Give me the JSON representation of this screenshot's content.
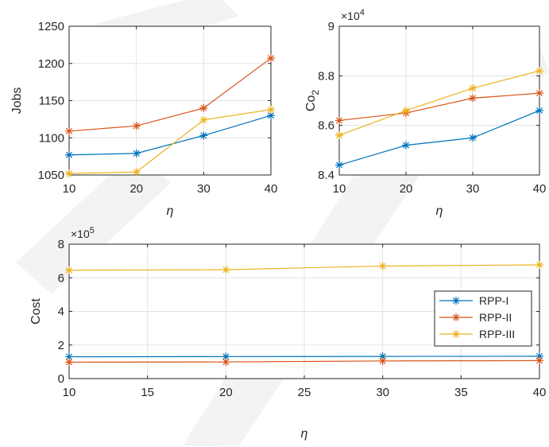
{
  "colors": {
    "RPP-I": "#0072BD",
    "RPP-II": "#D95319",
    "RPP-III": "#EDB120"
  },
  "chart_data": [
    {
      "id": "jobs",
      "type": "line",
      "marker": "asterisk",
      "xlabel": "η",
      "ylabel": "Jobs",
      "multiplier": "",
      "x": [
        10,
        20,
        30,
        40
      ],
      "xlim": [
        10,
        40
      ],
      "xticks": [
        "10",
        "20",
        "30",
        "40"
      ],
      "ylim": [
        1050,
        1250
      ],
      "yticks": [
        "1050",
        "1100",
        "1150",
        "1200",
        "1250"
      ],
      "grid": true,
      "series": [
        {
          "name": "RPP-I",
          "values": [
            1077,
            1079,
            1103,
            1130
          ]
        },
        {
          "name": "RPP-II",
          "values": [
            1109,
            1116,
            1140,
            1207
          ]
        },
        {
          "name": "RPP-III",
          "values": [
            1052,
            1054,
            1124,
            1138
          ]
        }
      ]
    },
    {
      "id": "co2",
      "type": "line",
      "marker": "asterisk",
      "xlabel": "η",
      "ylabel": "Co",
      "ylabel_sub": "2",
      "multiplier": "×10",
      "multiplier_exp": "4",
      "x": [
        10,
        20,
        30,
        40
      ],
      "xlim": [
        10,
        40
      ],
      "xticks": [
        "10",
        "20",
        "30",
        "40"
      ],
      "ylim": [
        8.4,
        9
      ],
      "yticks": [
        "8.4",
        "8.6",
        "8.8",
        "9"
      ],
      "grid": true,
      "series": [
        {
          "name": "RPP-I",
          "values": [
            8.44,
            8.52,
            8.55,
            8.66
          ]
        },
        {
          "name": "RPP-II",
          "values": [
            8.62,
            8.65,
            8.71,
            8.73
          ]
        },
        {
          "name": "RPP-III",
          "values": [
            8.56,
            8.66,
            8.75,
            8.82
          ]
        }
      ]
    },
    {
      "id": "cost",
      "type": "line",
      "marker": "asterisk",
      "xlabel": "η",
      "ylabel": "Cost",
      "multiplier": "×10",
      "multiplier_exp": "5",
      "x": [
        10,
        20,
        30,
        40
      ],
      "xlim": [
        10,
        40
      ],
      "xticks": [
        "10",
        "15",
        "20",
        "25",
        "30",
        "35",
        "40"
      ],
      "ylim": [
        0,
        8
      ],
      "yticks": [
        "0",
        "2",
        "4",
        "6",
        "8"
      ],
      "grid": true,
      "legend": {
        "placement": "right",
        "entries": [
          "RPP-I",
          "RPP-II",
          "RPP-III"
        ]
      },
      "series": [
        {
          "name": "RPP-I",
          "values": [
            1.3,
            1.31,
            1.32,
            1.33
          ]
        },
        {
          "name": "RPP-II",
          "values": [
            0.98,
            0.99,
            1.05,
            1.07
          ]
        },
        {
          "name": "RPP-III",
          "values": [
            6.45,
            6.48,
            6.7,
            6.77
          ]
        }
      ]
    }
  ]
}
